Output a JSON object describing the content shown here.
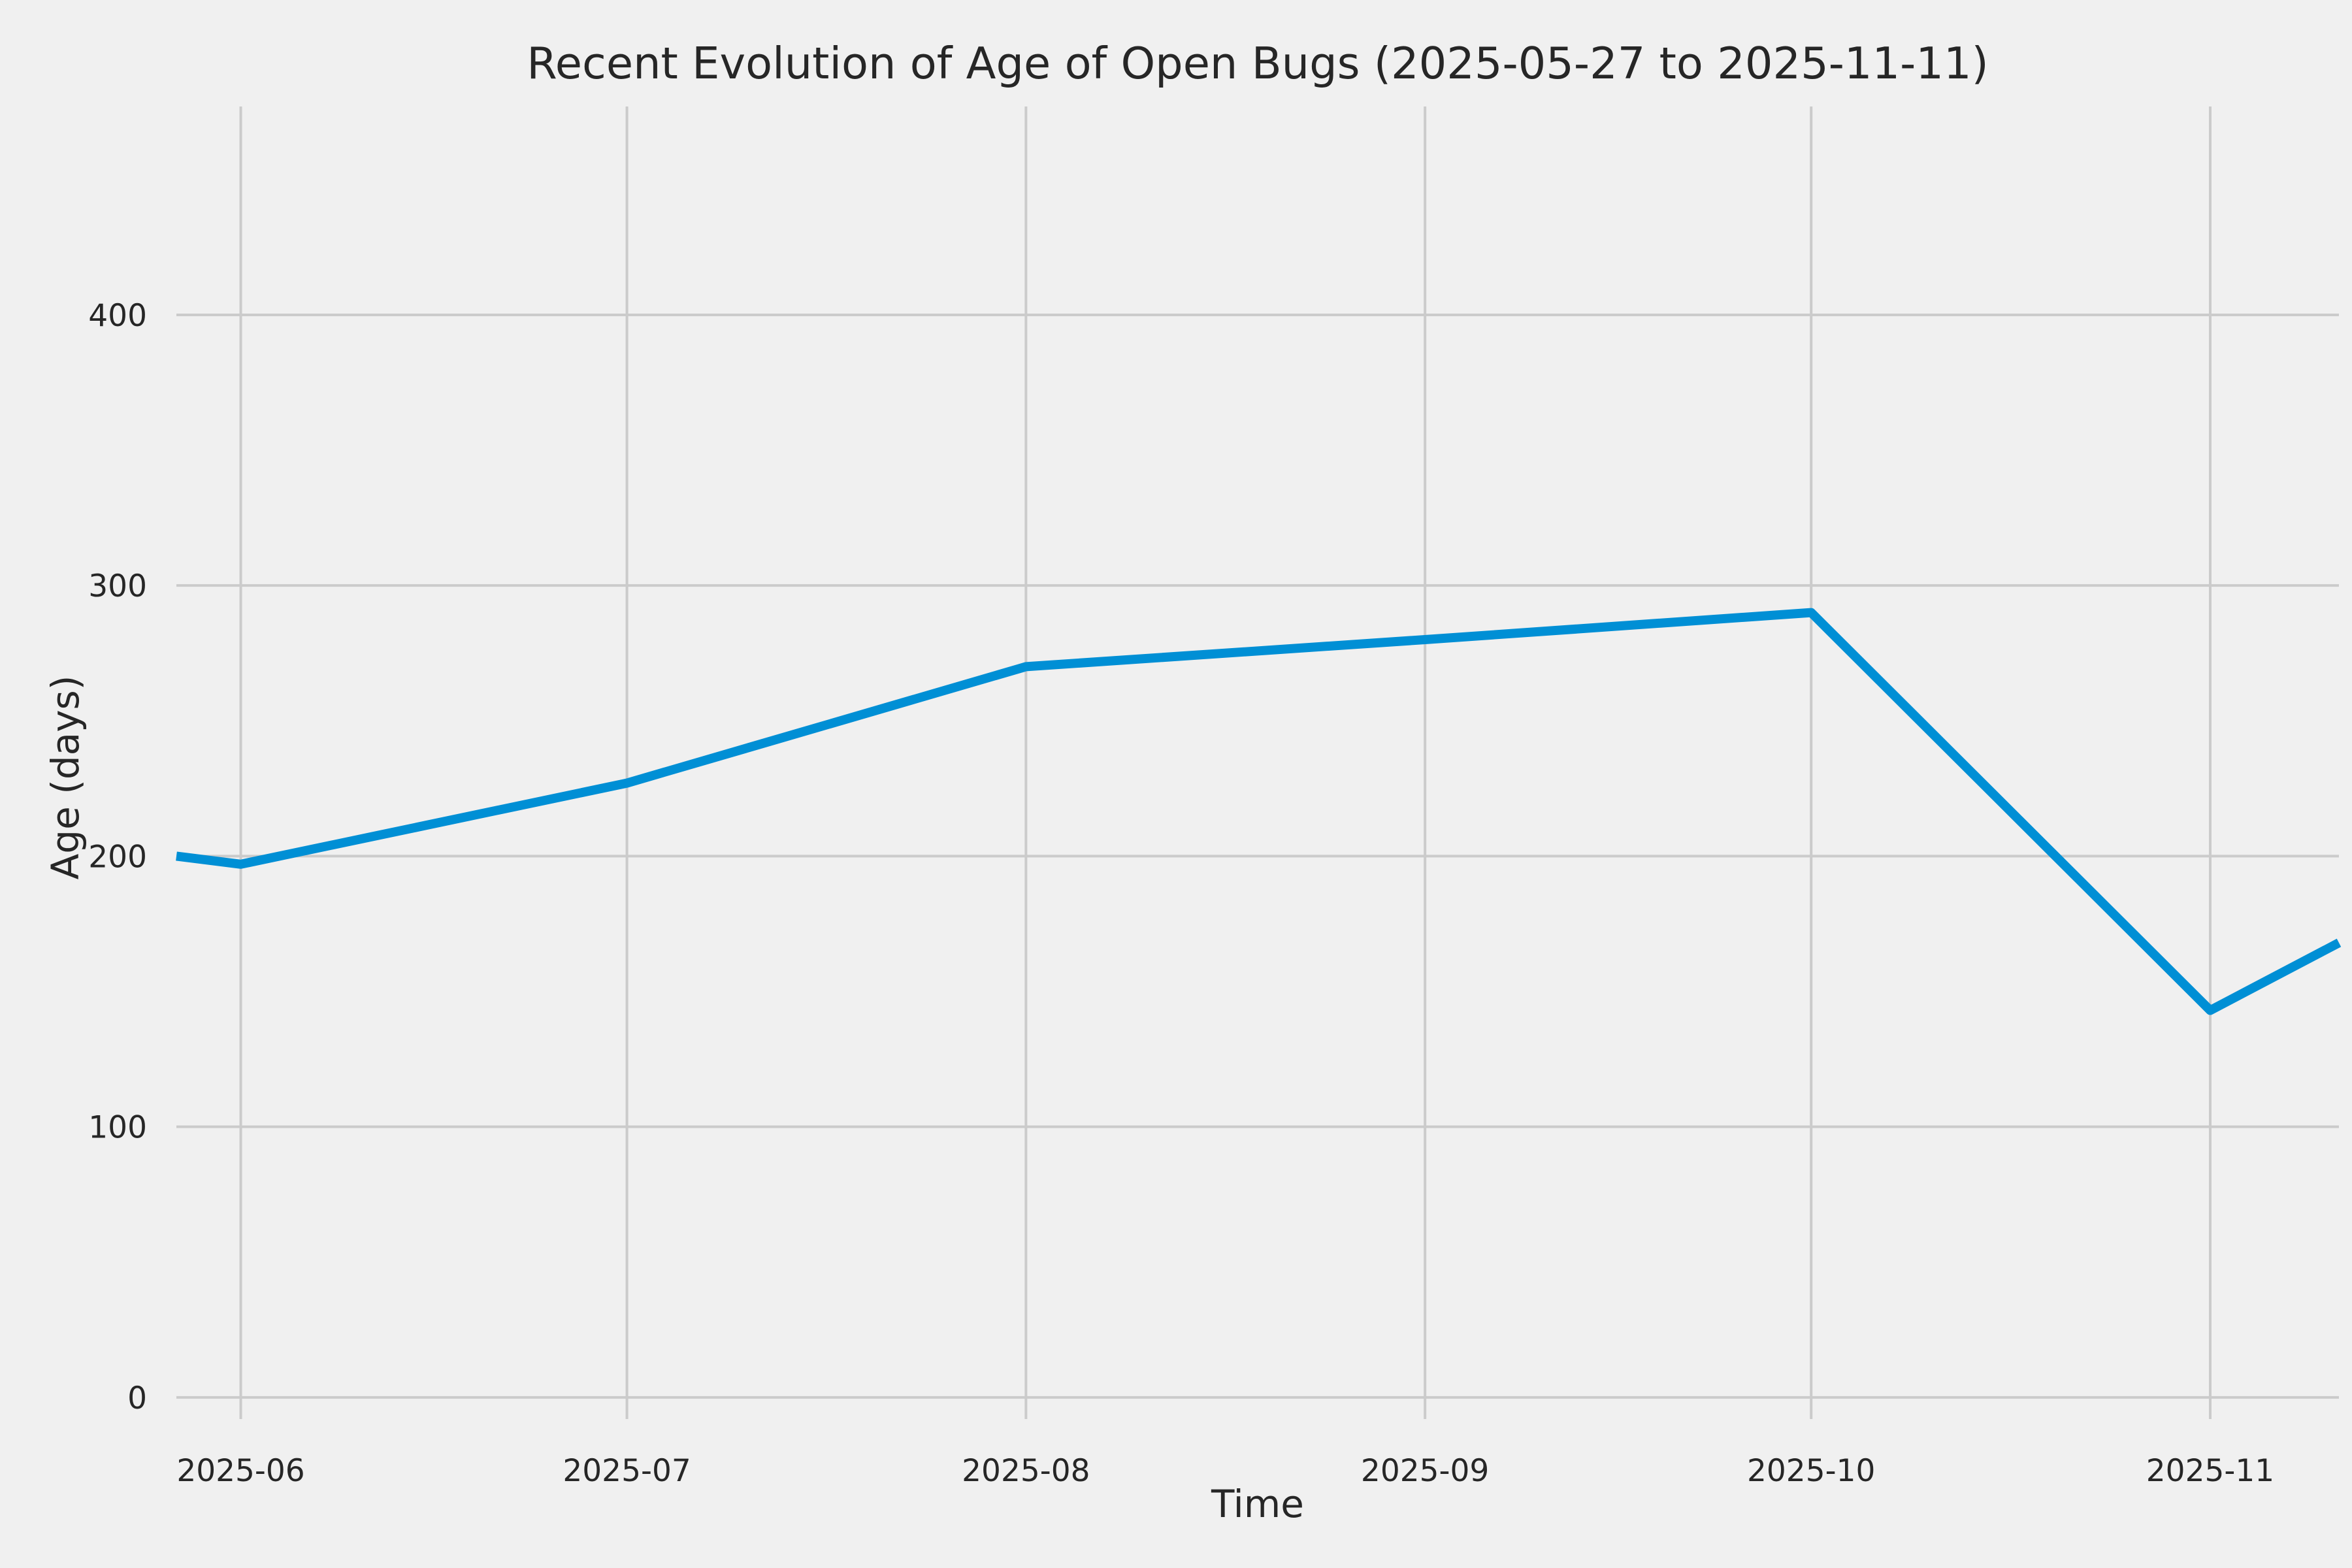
{
  "chart_data": {
    "type": "line",
    "title": "Recent Evolution of Age of Open Bugs (2025-05-27 to 2025-11-11)",
    "xlabel": "Time",
    "ylabel": "Age (days)",
    "background_color": "#f0f0f0",
    "grid": true,
    "grid_color": "#cbcbcb",
    "line_color": "#008fd5",
    "x_range_days": [
      0,
      168
    ],
    "ylim": [
      -8,
      477
    ],
    "y_ticks": [
      0,
      100,
      200,
      300,
      400
    ],
    "x_ticks": [
      {
        "label": "2025-06",
        "day": 5
      },
      {
        "label": "2025-07",
        "day": 35
      },
      {
        "label": "2025-08",
        "day": 66
      },
      {
        "label": "2025-09",
        "day": 97
      },
      {
        "label": "2025-10",
        "day": 127
      },
      {
        "label": "2025-11",
        "day": 158
      }
    ],
    "series": [
      {
        "name": "age_of_open_bugs",
        "points": [
          {
            "date": "2025-05-27",
            "day": 0,
            "value": 200
          },
          {
            "date": "2025-06-01",
            "day": 5,
            "value": 197
          },
          {
            "date": "2025-07-01",
            "day": 35,
            "value": 227
          },
          {
            "date": "2025-08-01",
            "day": 66,
            "value": 270
          },
          {
            "date": "2025-09-01",
            "day": 97,
            "value": 280
          },
          {
            "date": "2025-10-01",
            "day": 127,
            "value": 290
          },
          {
            "date": "2025-11-01",
            "day": 158,
            "value": 143
          },
          {
            "date": "2025-11-11",
            "day": 168,
            "value": 168
          }
        ]
      }
    ]
  }
}
